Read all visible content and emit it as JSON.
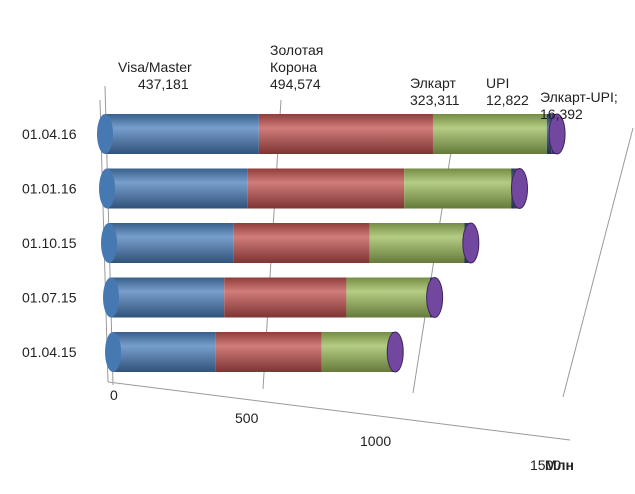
{
  "chart_data": {
    "type": "bar",
    "orientation": "horizontal",
    "stacked": true,
    "style": "3d-cylinder",
    "categories": [
      "01.04.16",
      "01.01.16",
      "01.10.15",
      "01.07.15",
      "01.04.15"
    ],
    "series": [
      {
        "values": [
          437.181,
          420,
          395,
          380,
          365
        ],
        "color": "#4a7ebb"
      },
      {
        "values": [
          494.574,
          470,
          430,
          410,
          380
        ],
        "color": "#c0504d"
      },
      {
        "values": [
          323.311,
          320,
          300,
          280,
          250
        ],
        "color": "#9bbb59"
      },
      {
        "values": [
          12.822,
          10,
          8,
          6,
          5
        ],
        "color": "#2c4d75"
      },
      {
        "values": [
          16.392,
          15,
          12,
          10,
          8
        ],
        "color": "#6a3d9a"
      }
    ],
    "xlim": [
      0,
      1500
    ],
    "ticks": [
      "0",
      "500",
      "1000",
      "1500"
    ],
    "tick_values": [
      0,
      500,
      1000,
      1500
    ],
    "unit_label": "Млн",
    "annotations": [
      {
        "lines": [
          "Visa/Master",
          "437,181"
        ],
        "series_index": 0
      },
      {
        "lines": [
          "Золотая",
          "Корона",
          "494,574"
        ],
        "series_index": 1
      },
      {
        "lines": [
          "Элкарт",
          "323,311"
        ],
        "series_index": 2
      },
      {
        "lines": [
          "UPI",
          "12,822"
        ],
        "series_index": 3
      },
      {
        "lines": [
          "Элкарт-UPI;",
          "16,392"
        ],
        "series_index": 4
      }
    ],
    "grid": true,
    "legend": "none"
  }
}
